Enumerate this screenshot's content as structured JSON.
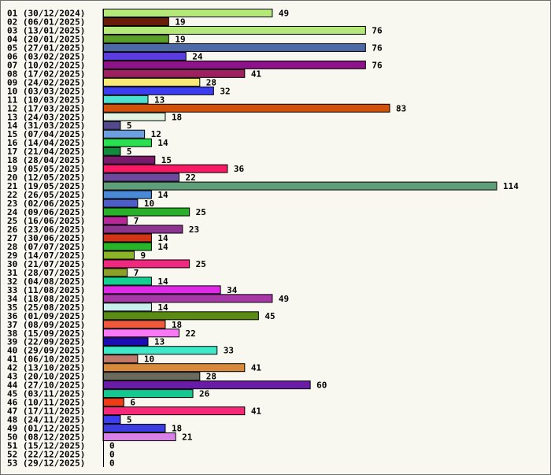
{
  "chart_data": {
    "type": "bar",
    "orientation": "horizontal",
    "title": "",
    "xlabel": "",
    "ylabel": "",
    "grid": false,
    "legend": "none",
    "xlim": [
      0,
      114
    ],
    "categories": [
      "01 (30/12/2024)",
      "02 (06/01/2025)",
      "03 (13/01/2025)",
      "04 (20/01/2025)",
      "05 (27/01/2025)",
      "06 (03/02/2025)",
      "07 (10/02/2025)",
      "08 (17/02/2025)",
      "09 (24/02/2025)",
      "10 (03/03/2025)",
      "11 (10/03/2025)",
      "12 (17/03/2025)",
      "13 (24/03/2025)",
      "14 (31/03/2025)",
      "15 (07/04/2025)",
      "16 (14/04/2025)",
      "17 (21/04/2025)",
      "18 (28/04/2025)",
      "19 (05/05/2025)",
      "20 (12/05/2025)",
      "21 (19/05/2025)",
      "22 (26/05/2025)",
      "23 (02/06/2025)",
      "24 (09/06/2025)",
      "25 (16/06/2025)",
      "26 (23/06/2025)",
      "27 (30/06/2025)",
      "28 (07/07/2025)",
      "29 (14/07/2025)",
      "30 (21/07/2025)",
      "31 (28/07/2025)",
      "32 (04/08/2025)",
      "33 (11/08/2025)",
      "34 (18/08/2025)",
      "35 (25/08/2025)",
      "36 (01/09/2025)",
      "37 (08/09/2025)",
      "38 (15/09/2025)",
      "39 (22/09/2025)",
      "40 (29/09/2025)",
      "41 (06/10/2025)",
      "42 (13/10/2025)",
      "43 (20/10/2025)",
      "44 (27/10/2025)",
      "45 (03/11/2025)",
      "46 (10/11/2025)",
      "47 (17/11/2025)",
      "48 (24/11/2025)",
      "49 (01/12/2025)",
      "50 (08/12/2025)",
      "51 (15/12/2025)",
      "52 (22/12/2025)",
      "53 (29/12/2025)"
    ],
    "values": [
      49,
      19,
      76,
      19,
      76,
      24,
      76,
      41,
      28,
      32,
      13,
      83,
      18,
      5,
      12,
      14,
      5,
      15,
      36,
      22,
      114,
      14,
      10,
      25,
      7,
      23,
      14,
      14,
      9,
      25,
      7,
      14,
      34,
      49,
      14,
      45,
      18,
      22,
      13,
      33,
      10,
      41,
      28,
      60,
      26,
      6,
      41,
      5,
      18,
      21,
      0,
      0,
      0
    ],
    "colors": [
      "#b4e878",
      "#6a1c08",
      "#b4e878",
      "#5a9e28",
      "#4e6aa6",
      "#5a3ce0",
      "#8c1488",
      "#9e2060",
      "#f8e878",
      "#3c3cf0",
      "#4ce0d0",
      "#d25008",
      "#e4f4e4",
      "#524a8c",
      "#6c9ee0",
      "#28e050",
      "#108c3c",
      "#7a1a6a",
      "#f81a64",
      "#6e4a9e",
      "#5e9e78",
      "#4a88d8",
      "#4e5ec8",
      "#28b028",
      "#b42898",
      "#8c3490",
      "#d23418",
      "#28b428",
      "#8cb428",
      "#f02880",
      "#8ca028",
      "#14d090",
      "#e028e8",
      "#a838a8",
      "#c8eeee",
      "#5a8c14",
      "#f05a3c",
      "#f878f8",
      "#1c0cb4",
      "#3ce8c8",
      "#c0786a",
      "#d88a3c",
      "#6a6a5e",
      "#6a1ca8",
      "#14c890",
      "#f03c14",
      "#f82878",
      "#3c3cf0",
      "#3c3ce0",
      "#d880e8",
      "#888888",
      "#888888",
      "#888888"
    ]
  }
}
